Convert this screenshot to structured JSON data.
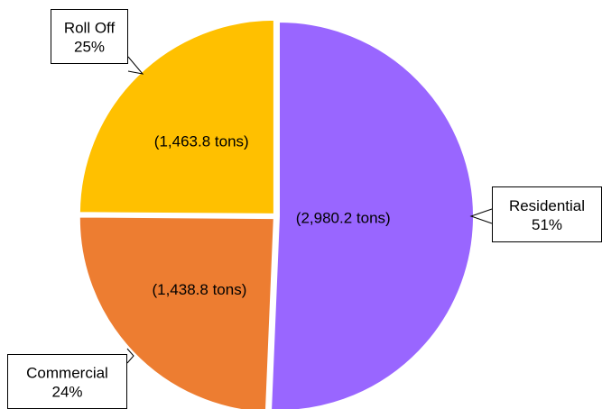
{
  "chart_data": {
    "type": "pie",
    "title": "",
    "unit": "tons",
    "slices": [
      {
        "name": "Residential",
        "value": 2980.2,
        "value_label": "(2,980.2 tons)",
        "percent_label": "51%",
        "color": "#9966FF"
      },
      {
        "name": "Commercial",
        "value": 1438.8,
        "value_label": "(1,438.8 tons)",
        "percent_label": "24%",
        "color": "#ED7D31"
      },
      {
        "name": "Roll Off",
        "value": 1463.8,
        "value_label": "(1,463.8 tons)",
        "percent_label": "25%",
        "color": "#FFC000"
      }
    ],
    "start_angle_deg": 0,
    "direction": "clockwise",
    "exploded": true,
    "legend": "none",
    "labels": "callouts"
  }
}
